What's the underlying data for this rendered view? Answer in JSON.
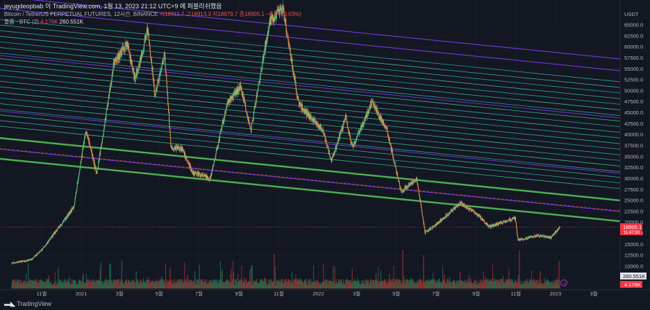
{
  "header": {
    "credit": "jeyugdeopbab 이 TradingView.com, 1월 13, 2023 21:12 UTC+9 에 퍼블리쉬했음",
    "symbol": "Bitcoin / TetherUS PERPETUAL FUTURES, 12시간, BINANCE",
    "ohlc": "시18911.7 고18913.3 저18879.7 종18905.1 −6.6 (−0.03%)",
    "volume_label": "볼륨 · BTC (2)",
    "volume_red": "4.176K",
    "volume_white": "260.551K"
  },
  "footer": {
    "logo_text": "TradingView"
  },
  "axis": {
    "currency": "USDT",
    "price_ticks": [
      "65000.0",
      "62500.0",
      "60000.0",
      "57500.0",
      "55000.0",
      "52500.0",
      "50000.0",
      "47500.0",
      "45000.0",
      "42500.0",
      "40000.0",
      "37500.0",
      "35000.0",
      "32500.0",
      "30000.0",
      "27500.0",
      "25000.0",
      "22500.0",
      "20000.0",
      "17500.0",
      "15000.0",
      "12500.0",
      "10000.0"
    ],
    "time_ticks": [
      "11월",
      "2021",
      "3월",
      "5월",
      "7월",
      "9월",
      "11월",
      "2022",
      "3월",
      "5월",
      "7월",
      "9월",
      "11월",
      "2023",
      "3월"
    ]
  },
  "price_tag": {
    "price": "18905.1",
    "countdown": "11:47:30"
  },
  "volume_tag": {
    "value": "260.551K"
  },
  "volume_tag_red": {
    "value": "4.176K"
  },
  "colors": {
    "background": "#131722",
    "up": "#26a69a",
    "down": "#ef5350",
    "candle_body": "#d9a441",
    "channel_main": "#4caf50",
    "channel_inner": "#2aa198",
    "channel_outer": "#7e3ff2",
    "price_tag": "#f23645"
  },
  "chart_data": {
    "type": "candlestick",
    "title": "Bitcoin / TetherUS PERPETUAL FUTURES, 12시간, BINANCE",
    "timeframe": "12h",
    "ylim": [
      0,
      69000
    ],
    "y_unit": "USDT",
    "last_price": 18905.1,
    "ohlc_last": {
      "open": 18911.7,
      "high": 18913.3,
      "low": 18879.7,
      "close": 18905.1,
      "change": -6.6,
      "change_pct": -0.03
    },
    "price_path": [
      [
        "2020-09-15",
        10700
      ],
      [
        "2020-10-15",
        11500
      ],
      [
        "2020-11-01",
        13800
      ],
      [
        "2020-11-25",
        18500
      ],
      [
        "2020-12-20",
        23500
      ],
      [
        "2021-01-08",
        41000
      ],
      [
        "2021-01-25",
        31000
      ],
      [
        "2021-02-20",
        56000
      ],
      [
        "2021-03-13",
        61000
      ],
      [
        "2021-03-25",
        52500
      ],
      [
        "2021-04-14",
        64000
      ],
      [
        "2021-04-25",
        49000
      ],
      [
        "2021-05-10",
        58000
      ],
      [
        "2021-05-20",
        37000
      ],
      [
        "2021-06-05",
        37000
      ],
      [
        "2021-06-22",
        31500
      ],
      [
        "2021-07-20",
        30000
      ],
      [
        "2021-08-15",
        47000
      ],
      [
        "2021-09-05",
        51000
      ],
      [
        "2021-09-21",
        41000
      ],
      [
        "2021-10-20",
        66000
      ],
      [
        "2021-11-10",
        68500
      ],
      [
        "2021-12-04",
        47000
      ],
      [
        "2022-01-10",
        41000
      ],
      [
        "2022-01-24",
        34000
      ],
      [
        "2022-02-15",
        44000
      ],
      [
        "2022-02-25",
        37000
      ],
      [
        "2022-03-28",
        47500
      ],
      [
        "2022-04-20",
        41000
      ],
      [
        "2022-05-12",
        27000
      ],
      [
        "2022-06-05",
        30000
      ],
      [
        "2022-06-18",
        17700
      ],
      [
        "2022-07-05",
        19500
      ],
      [
        "2022-08-12",
        24500
      ],
      [
        "2022-09-10",
        21500
      ],
      [
        "2022-09-25",
        19000
      ],
      [
        "2022-10-25",
        20500
      ],
      [
        "2022-11-05",
        21000
      ],
      [
        "2022-11-09",
        16000
      ],
      [
        "2022-12-10",
        17000
      ],
      [
        "2022-12-30",
        16500
      ],
      [
        "2023-01-13",
        18905
      ]
    ],
    "volume_unit": "BTC",
    "volume_last": {
      "value": 260551,
      "sub_value": 4176
    },
    "channel": {
      "kind": "descending parallel channel",
      "main_lines": 2,
      "inner_lines": 20,
      "outer_lines": 3
    }
  }
}
